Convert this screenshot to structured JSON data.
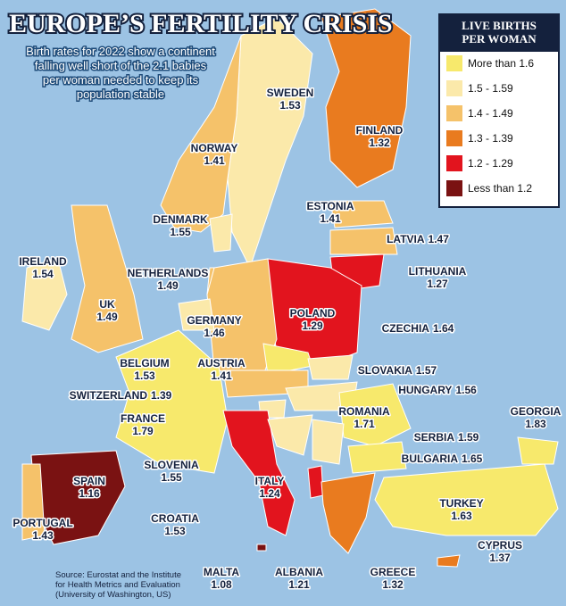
{
  "title": "EUROPE’S FERTILITY CRISIS",
  "subtitle": [
    "Birth rates for 2022 show a continent",
    "falling well short of the 2.1 babies",
    "per woman needed to keep its",
    "population stable"
  ],
  "legend": {
    "title": [
      "LIVE BIRTHS",
      "PER WOMAN"
    ],
    "items": [
      {
        "label": "More than 1.6",
        "color": "#f7e96c"
      },
      {
        "label": "1.5 - 1.59",
        "color": "#fbe9aa"
      },
      {
        "label": "1.4 - 1.49",
        "color": "#f5c26a"
      },
      {
        "label": "1.3 - 1.39",
        "color": "#e97b1f"
      },
      {
        "label": "1.2 - 1.29",
        "color": "#e2141e"
      },
      {
        "label": "Less than 1.2",
        "color": "#7a1212"
      }
    ]
  },
  "countries": [
    {
      "name": "SWEDEN",
      "value": 1.53,
      "color": "#fbe9aa"
    },
    {
      "name": "FINLAND",
      "value": 1.32,
      "color": "#e97b1f"
    },
    {
      "name": "NORWAY",
      "value": 1.41,
      "color": "#f5c26a"
    },
    {
      "name": "DENMARK",
      "value": 1.55,
      "color": "#fbe9aa"
    },
    {
      "name": "ESTONIA",
      "value": 1.41,
      "color": "#f5c26a"
    },
    {
      "name": "LATVIA",
      "value": 1.47,
      "color": "#f5c26a"
    },
    {
      "name": "LITHUANIA",
      "value": 1.27,
      "color": "#e2141e"
    },
    {
      "name": "IRELAND",
      "value": 1.54,
      "color": "#fbe9aa"
    },
    {
      "name": "UK",
      "value": 1.49,
      "color": "#f5c26a"
    },
    {
      "name": "NETHERLANDS",
      "value": 1.49,
      "color": "#f5c26a"
    },
    {
      "name": "POLAND",
      "value": 1.29,
      "color": "#e2141e"
    },
    {
      "name": "GERMANY",
      "value": 1.46,
      "color": "#f5c26a"
    },
    {
      "name": "CZECHIA",
      "value": 1.64,
      "color": "#f7e96c"
    },
    {
      "name": "BELGIUM",
      "value": 1.53,
      "color": "#fbe9aa"
    },
    {
      "name": "AUSTRIA",
      "value": 1.41,
      "color": "#f5c26a"
    },
    {
      "name": "SLOVAKIA",
      "value": 1.57,
      "color": "#fbe9aa"
    },
    {
      "name": "SWITZERLAND",
      "value": 1.39,
      "color": "#e97b1f"
    },
    {
      "name": "HUNGARY",
      "value": 1.56,
      "color": "#fbe9aa"
    },
    {
      "name": "ROMANIA",
      "value": 1.71,
      "color": "#f7e96c"
    },
    {
      "name": "FRANCE",
      "value": 1.79,
      "color": "#f7e96c"
    },
    {
      "name": "GEORGIA",
      "value": 1.83,
      "color": "#f7e96c"
    },
    {
      "name": "SERBIA",
      "value": 1.59,
      "color": "#fbe9aa"
    },
    {
      "name": "SLOVENIA",
      "value": 1.55,
      "color": "#fbe9aa"
    },
    {
      "name": "BULGARIA",
      "value": 1.65,
      "color": "#f7e96c"
    },
    {
      "name": "SPAIN",
      "value": 1.16,
      "color": "#7a1212"
    },
    {
      "name": "ITALY",
      "value": 1.24,
      "color": "#e2141e"
    },
    {
      "name": "TURKEY",
      "value": 1.63,
      "color": "#f7e96c"
    },
    {
      "name": "PORTUGAL",
      "value": 1.43,
      "color": "#f5c26a"
    },
    {
      "name": "CROATIA",
      "value": 1.53,
      "color": "#fbe9aa"
    },
    {
      "name": "CYPRUS",
      "value": 1.37,
      "color": "#e97b1f"
    },
    {
      "name": "MALTA",
      "value": 1.08,
      "color": "#7a1212"
    },
    {
      "name": "ALBANIA",
      "value": 1.21,
      "color": "#e2141e"
    },
    {
      "name": "GREECE",
      "value": 1.32,
      "color": "#e97b1f"
    }
  ],
  "source": [
    "Source: Eurostat and the Institute",
    "for Health Metrics and Evaluation",
    "(University of Washington, US)"
  ]
}
